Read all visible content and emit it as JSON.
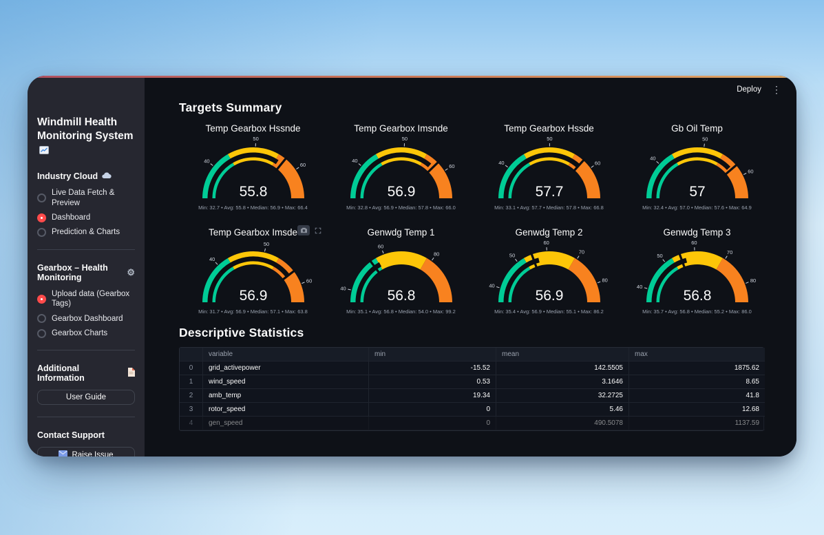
{
  "header": {
    "deploy_label": "Deploy",
    "kebab_icon": "⋮"
  },
  "sidebar": {
    "title": "Windmill Health Monitoring System",
    "gear_icon": "⚙",
    "groups": [
      {
        "label": "Industry Cloud",
        "options": [
          {
            "label": "Live Data Fetch & Preview",
            "selected": false
          },
          {
            "label": "Dashboard",
            "selected": true
          },
          {
            "label": "Prediction & Charts",
            "selected": false
          }
        ]
      },
      {
        "label": "Gearbox – Health Monitoring",
        "options": [
          {
            "label": "Upload data (Gearbox Tags)",
            "selected": true
          },
          {
            "label": "Gearbox Dashboard",
            "selected": false
          },
          {
            "label": "Gearbox Charts",
            "selected": false
          }
        ]
      }
    ],
    "info_label": "Additional Information",
    "user_guide_button": "User Guide",
    "contact_label": "Contact Support",
    "raise_issue_button": "Raise Issue"
  },
  "main": {
    "targets_heading": "Targets Summary",
    "stats_heading": "Descriptive Statistics"
  },
  "colors": {
    "accent": "#ff4b4b",
    "gauge_green": "#00cc96",
    "gauge_yellow": "#fdc608",
    "gauge_orange": "#f8821f",
    "gauge_bar": "#0c0e12",
    "tick_label": "#cfd4dd"
  },
  "chart_data": [
    {
      "type": "gauge",
      "title": "Temp Gearbox Hssnde",
      "value": "55.8",
      "min": 32.7,
      "avg": 55.8,
      "median": 56.9,
      "max": 66.4,
      "ticks": [
        40,
        50,
        60
      ],
      "stats": "Min: 32.7 • Avg: 55.8 • Median: 56.9 • Max: 66.4",
      "toolbar": false
    },
    {
      "type": "gauge",
      "title": "Temp Gearbox Imsnde",
      "value": "56.9",
      "min": 32.8,
      "avg": 56.9,
      "median": 57.8,
      "max": 66.0,
      "ticks": [
        40,
        50,
        60
      ],
      "stats": "Min: 32.8 • Avg: 56.9 • Median: 57.8 • Max: 66.0",
      "toolbar": false
    },
    {
      "type": "gauge",
      "title": "Temp Gearbox Hssde",
      "value": "57.7",
      "min": 33.1,
      "avg": 57.7,
      "median": 57.8,
      "max": 66.8,
      "ticks": [
        40,
        50,
        60
      ],
      "stats": "Min: 33.1 • Avg: 57.7 • Median: 57.8 • Max: 66.8",
      "toolbar": false
    },
    {
      "type": "gauge",
      "title": "Gb Oil Temp",
      "value": "57",
      "min": 32.4,
      "avg": 57.0,
      "median": 57.6,
      "max": 64.9,
      "ticks": [
        40,
        50,
        60
      ],
      "stats": "Min: 32.4 • Avg: 57.0 • Median: 57.6 • Max: 64.9",
      "toolbar": false
    },
    {
      "type": "gauge",
      "title": "Temp Gearbox Imsde",
      "value": "56.9",
      "min": 31.7,
      "avg": 56.9,
      "median": 57.1,
      "max": 63.8,
      "ticks": [
        40,
        50,
        60
      ],
      "stats": "Min: 31.7 • Avg: 56.9 • Median: 57.1 • Max: 63.8",
      "toolbar": true
    },
    {
      "type": "gauge",
      "title": "Genwdg Temp 1",
      "value": "56.8",
      "min": 35.1,
      "avg": 56.8,
      "median": 54.0,
      "max": 99.2,
      "ticks": [
        40,
        60,
        80
      ],
      "stats": "Min: 35.1 • Avg: 56.8 • Median: 54.0 • Max: 99.2",
      "toolbar": false
    },
    {
      "type": "gauge",
      "title": "Genwdg Temp 2",
      "value": "56.9",
      "min": 35.4,
      "avg": 56.9,
      "median": 55.1,
      "max": 86.2,
      "ticks": [
        40,
        50,
        60,
        70,
        80
      ],
      "stats": "Min: 35.4 • Avg: 56.9 • Median: 55.1 • Max: 86.2",
      "toolbar": false
    },
    {
      "type": "gauge",
      "title": "Genwdg Temp 3",
      "value": "56.8",
      "min": 35.7,
      "avg": 56.8,
      "median": 55.2,
      "max": 86.0,
      "ticks": [
        40,
        50,
        60,
        70,
        80
      ],
      "stats": "Min: 35.7 • Avg: 56.8 • Median: 55.2 • Max: 86.0",
      "toolbar": false
    }
  ],
  "table": {
    "columns": [
      "",
      "variable",
      "min",
      "mean",
      "max"
    ],
    "rows": [
      [
        "0",
        "grid_activepower",
        "-15.52",
        "142.5505",
        "1875.62"
      ],
      [
        "1",
        "wind_speed",
        "0.53",
        "3.1646",
        "8.65"
      ],
      [
        "2",
        "amb_temp",
        "19.34",
        "32.2725",
        "41.8"
      ],
      [
        "3",
        "rotor_speed",
        "0",
        "5.46",
        "12.68"
      ],
      [
        "4",
        "gen_speed",
        "0",
        "490.5078",
        "1137.59"
      ]
    ]
  }
}
